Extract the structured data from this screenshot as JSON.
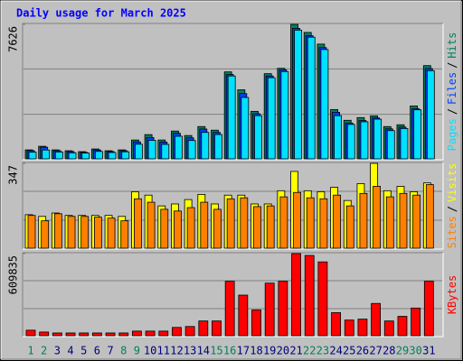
{
  "chart_data": {
    "type": "bar",
    "title": "Daily usage for March 2025",
    "legend_separator": "/",
    "categories": [
      "1",
      "2",
      "3",
      "4",
      "5",
      "6",
      "7",
      "8",
      "9",
      "10",
      "11",
      "12",
      "13",
      "14",
      "15",
      "16",
      "17",
      "18",
      "19",
      "20",
      "21",
      "22",
      "23",
      "24",
      "25",
      "26",
      "27",
      "28",
      "29",
      "30",
      "31"
    ],
    "category_colors": [
      "#00805c",
      "#00805c",
      "#000080",
      "#000080",
      "#000080",
      "#000080",
      "#000080",
      "#00805c",
      "#00805c",
      "#000080",
      "#000080",
      "#000080",
      "#000080",
      "#000080",
      "#00805c",
      "#00805c",
      "#000080",
      "#000080",
      "#000080",
      "#000080",
      "#000080",
      "#00805c",
      "#00805c",
      "#000080",
      "#000080",
      "#000080",
      "#000080",
      "#000080",
      "#00805c",
      "#00805c",
      "#000080"
    ],
    "panels": [
      {
        "ylim": [
          0,
          7626
        ],
        "yticks": [
          7626
        ],
        "series": [
          {
            "name": "Hits",
            "color": "#00805c",
            "values": [
              508,
              712,
              508,
              458,
              407,
              559,
              458,
              508,
              1068,
              1373,
              1068,
              1576,
              1322,
              1830,
              1627,
              4931,
              3915,
              2694,
              4830,
              5135,
              7626,
              7168,
              6508,
              2796,
              2186,
              2339,
              2440,
              1830,
              1932,
              3000,
              5287
            ]
          },
          {
            "name": "Files",
            "color": "#0040ff",
            "values": [
              467,
              661,
              457,
              412,
              366,
              503,
              412,
              457,
              961,
              1208,
              950,
              1450,
              1190,
              1690,
              1498,
              4780,
              3700,
              2560,
              4700,
              5050,
              7400,
              6980,
              6310,
              2640,
              2030,
              2170,
              2320,
              1700,
              1800,
              2840,
              5120
            ]
          },
          {
            "name": "Pages",
            "color": "#00e0ff",
            "values": [
              380,
              500,
              390,
              340,
              330,
              420,
              360,
              400,
              830,
              1050,
              820,
              1280,
              1040,
              1500,
              1380,
              4700,
              3480,
              2450,
              4600,
              4950,
              7300,
              6900,
              6200,
              2450,
              1950,
              2100,
              2250,
              1600,
              1720,
              2780,
              5000
            ]
          }
        ]
      },
      {
        "ylim": [
          0,
          347
        ],
        "yticks": [
          347
        ],
        "series": [
          {
            "name": "Visits",
            "color": "#ffff00",
            "values": [
              137,
              130,
              144,
              134,
              134,
              134,
              134,
              130,
              231,
              217,
              173,
              181,
              199,
              220,
              181,
              217,
              217,
              181,
              181,
              235,
              314,
              235,
              231,
              249,
              195,
              264,
              347,
              235,
              253,
              231,
              267
            ]
          },
          {
            "name": "Sites",
            "color": "#ff8000",
            "values": [
              134,
              112,
              141,
              130,
              130,
              127,
              123,
              112,
              202,
              188,
              159,
              152,
              166,
              188,
              159,
              202,
              206,
              170,
              173,
              210,
              228,
              206,
              202,
              217,
              173,
              224,
              253,
              210,
              224,
              217,
              260
            ]
          }
        ]
      },
      {
        "ylim": [
          0,
          609835
        ],
        "yticks": [
          609835
        ],
        "series": [
          {
            "name": "KBytes",
            "color": "#ff0000",
            "values": [
              41100,
              27400,
              20500,
              20500,
              20500,
              20500,
              20500,
              20500,
              34300,
              34300,
              34300,
              61700,
              68500,
              109600,
              109600,
              404300,
              301500,
              191900,
              390600,
              404300,
              609835,
              596100,
              548200,
              171300,
              116500,
              123300,
              239800,
              109600,
              143900,
              205600,
              404300
            ]
          }
        ]
      }
    ]
  }
}
